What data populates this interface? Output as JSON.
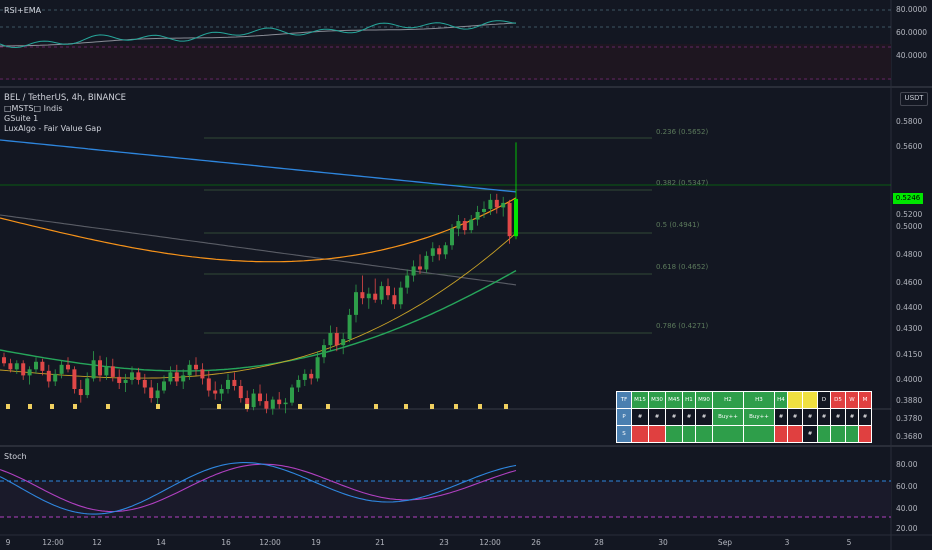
{
  "symbol": {
    "title": "BEL / TetherUS, 4h, BINANCE",
    "indicators": [
      "□MSTS□ Indis",
      "GSuite 1",
      "LuxAlgo - Fair Value Gap"
    ],
    "currency": "USDT",
    "last_price": "0.5246"
  },
  "panes": {
    "rsi_title": "RSI+EMA",
    "stoch_title": "Stoch"
  },
  "y_axis": {
    "rsi": [
      "80.0000",
      "60.0000",
      "40.0000"
    ],
    "main": [
      "0.5800",
      "0.5600",
      "0.5200",
      "0.5000",
      "0.4800",
      "0.4600",
      "0.4400",
      "0.4300",
      "0.4150",
      "0.4000",
      "0.3880",
      "0.3780",
      "0.3680"
    ],
    "stoch": [
      "80.00",
      "60.00",
      "40.00",
      "20.00"
    ]
  },
  "x_axis": [
    "9",
    "12:00",
    "12",
    "14",
    "16",
    "12:00",
    "19",
    "21",
    "23",
    "12:00",
    "26",
    "28",
    "30",
    "Sep",
    "3",
    "5"
  ],
  "fib_levels": [
    {
      "label": "0.236 (0.5652)"
    },
    {
      "label": "0.382 (0.5347)"
    },
    {
      "label": "0.5 (0.4941)"
    },
    {
      "label": "0.618 (0.4652)"
    },
    {
      "label": "0.786 (0.4271)"
    }
  ],
  "mtf_table": {
    "header": [
      "TF",
      "M15",
      "M30",
      "M45",
      "H1",
      "M90",
      "H2",
      "H3",
      "H4",
      "",
      "",
      "D",
      "D5",
      "W",
      "M"
    ],
    "row_p": [
      "P",
      "#",
      "#",
      "#",
      "#",
      "#",
      "Buy++",
      "Buy++",
      "#",
      "#",
      "#",
      "#",
      "#",
      "#",
      "#"
    ],
    "row_s": [
      "S",
      "",
      "",
      "",
      "",
      "",
      "",
      "",
      "",
      "",
      "#",
      "",
      "",
      "",
      ""
    ],
    "colors": {
      "header": [
        "#4a7fb0",
        "#2e9e4a",
        "#2e9e4a",
        "#2e9e4a",
        "#2e9e4a",
        "#2e9e4a",
        "#2e9e4a",
        "#2e9e4a",
        "#2e9e4a",
        "#f0e040",
        "#f0e040",
        "#131722",
        "#e04040",
        "#e04040",
        "#e04040"
      ],
      "row_p": [
        "#4a7fb0",
        "#131722",
        "#131722",
        "#131722",
        "#131722",
        "#131722",
        "#2e9e4a",
        "#2e9e4a",
        "#131722",
        "#131722",
        "#131722",
        "#131722",
        "#131722",
        "#131722",
        "#131722"
      ],
      "row_s": [
        "#4a7fb0",
        "#e04040",
        "#e04040",
        "#2e9e4a",
        "#2e9e4a",
        "#2e9e4a",
        "#2e9e4a",
        "#2e9e4a",
        "#e04040",
        "#e04040",
        "#131722",
        "#2e9e4a",
        "#2e9e4a",
        "#2e9e4a",
        "#e04040"
      ]
    }
  },
  "chart_data": {
    "type": "candlestick",
    "title": "BEL / TetherUS, 4h, BINANCE",
    "candles": [
      [
        0.42,
        0.423,
        0.414,
        0.416
      ],
      [
        0.416,
        0.419,
        0.41,
        0.412
      ],
      [
        0.412,
        0.418,
        0.409,
        0.416
      ],
      [
        0.416,
        0.418,
        0.405,
        0.408
      ],
      [
        0.408,
        0.414,
        0.402,
        0.412
      ],
      [
        0.412,
        0.42,
        0.409,
        0.417
      ],
      [
        0.417,
        0.419,
        0.408,
        0.411
      ],
      [
        0.411,
        0.415,
        0.4,
        0.404
      ],
      [
        0.404,
        0.412,
        0.401,
        0.409
      ],
      [
        0.409,
        0.418,
        0.406,
        0.415
      ],
      [
        0.415,
        0.42,
        0.41,
        0.412
      ],
      [
        0.412,
        0.414,
        0.396,
        0.399
      ],
      [
        0.399,
        0.405,
        0.39,
        0.395
      ],
      [
        0.395,
        0.41,
        0.393,
        0.406
      ],
      [
        0.406,
        0.424,
        0.404,
        0.418
      ],
      [
        0.418,
        0.421,
        0.404,
        0.408
      ],
      [
        0.408,
        0.42,
        0.405,
        0.414
      ],
      [
        0.414,
        0.419,
        0.404,
        0.407
      ],
      [
        0.407,
        0.412,
        0.399,
        0.403
      ],
      [
        0.403,
        0.409,
        0.397,
        0.405
      ],
      [
        0.405,
        0.414,
        0.402,
        0.41
      ],
      [
        0.41,
        0.413,
        0.402,
        0.405
      ],
      [
        0.405,
        0.409,
        0.396,
        0.4
      ],
      [
        0.4,
        0.405,
        0.39,
        0.393
      ],
      [
        0.393,
        0.403,
        0.388,
        0.398
      ],
      [
        0.398,
        0.408,
        0.396,
        0.404
      ],
      [
        0.404,
        0.414,
        0.402,
        0.41
      ],
      [
        0.41,
        0.415,
        0.401,
        0.404
      ],
      [
        0.404,
        0.412,
        0.399,
        0.408
      ],
      [
        0.408,
        0.418,
        0.405,
        0.415
      ],
      [
        0.415,
        0.42,
        0.408,
        0.412
      ],
      [
        0.412,
        0.416,
        0.402,
        0.406
      ],
      [
        0.406,
        0.411,
        0.394,
        0.398
      ],
      [
        0.398,
        0.404,
        0.392,
        0.396
      ],
      [
        0.396,
        0.402,
        0.391,
        0.399
      ],
      [
        0.399,
        0.409,
        0.396,
        0.405
      ],
      [
        0.405,
        0.41,
        0.398,
        0.401
      ],
      [
        0.401,
        0.405,
        0.39,
        0.393
      ],
      [
        0.393,
        0.398,
        0.384,
        0.387
      ],
      [
        0.387,
        0.399,
        0.385,
        0.396
      ],
      [
        0.396,
        0.402,
        0.388,
        0.391
      ],
      [
        0.391,
        0.396,
        0.383,
        0.386
      ],
      [
        0.386,
        0.394,
        0.382,
        0.392
      ],
      [
        0.392,
        0.397,
        0.386,
        0.389
      ],
      [
        0.389,
        0.393,
        0.383,
        0.39
      ],
      [
        0.39,
        0.402,
        0.388,
        0.4
      ],
      [
        0.4,
        0.408,
        0.397,
        0.405
      ],
      [
        0.405,
        0.412,
        0.401,
        0.409
      ],
      [
        0.409,
        0.412,
        0.402,
        0.406
      ],
      [
        0.406,
        0.424,
        0.404,
        0.42
      ],
      [
        0.42,
        0.432,
        0.416,
        0.428
      ],
      [
        0.428,
        0.441,
        0.424,
        0.436
      ],
      [
        0.436,
        0.44,
        0.424,
        0.428
      ],
      [
        0.428,
        0.436,
        0.422,
        0.432
      ],
      [
        0.432,
        0.452,
        0.43,
        0.448
      ],
      [
        0.448,
        0.468,
        0.443,
        0.463
      ],
      [
        0.463,
        0.474,
        0.455,
        0.459
      ],
      [
        0.459,
        0.466,
        0.452,
        0.462
      ],
      [
        0.462,
        0.472,
        0.456,
        0.458
      ],
      [
        0.458,
        0.47,
        0.455,
        0.467
      ],
      [
        0.467,
        0.472,
        0.458,
        0.461
      ],
      [
        0.461,
        0.466,
        0.452,
        0.455
      ],
      [
        0.455,
        0.47,
        0.452,
        0.466
      ],
      [
        0.466,
        0.478,
        0.462,
        0.474
      ],
      [
        0.474,
        0.484,
        0.47,
        0.48
      ],
      [
        0.48,
        0.488,
        0.475,
        0.478
      ],
      [
        0.478,
        0.49,
        0.476,
        0.487
      ],
      [
        0.487,
        0.496,
        0.483,
        0.492
      ],
      [
        0.492,
        0.494,
        0.484,
        0.488
      ],
      [
        0.488,
        0.496,
        0.485,
        0.494
      ],
      [
        0.494,
        0.508,
        0.491,
        0.505
      ],
      [
        0.505,
        0.514,
        0.5,
        0.51
      ],
      [
        0.51,
        0.512,
        0.501,
        0.504
      ],
      [
        0.504,
        0.514,
        0.502,
        0.511
      ],
      [
        0.511,
        0.52,
        0.507,
        0.516
      ],
      [
        0.516,
        0.523,
        0.512,
        0.518
      ],
      [
        0.518,
        0.528,
        0.514,
        0.524
      ],
      [
        0.524,
        0.528,
        0.515,
        0.519
      ],
      [
        0.519,
        0.526,
        0.513,
        0.522
      ],
      [
        0.522,
        0.524,
        0.495,
        0.5
      ],
      [
        0.5,
        0.562,
        0.498,
        0.5246
      ]
    ],
    "ylim": [
      0.362,
      0.59
    ]
  }
}
